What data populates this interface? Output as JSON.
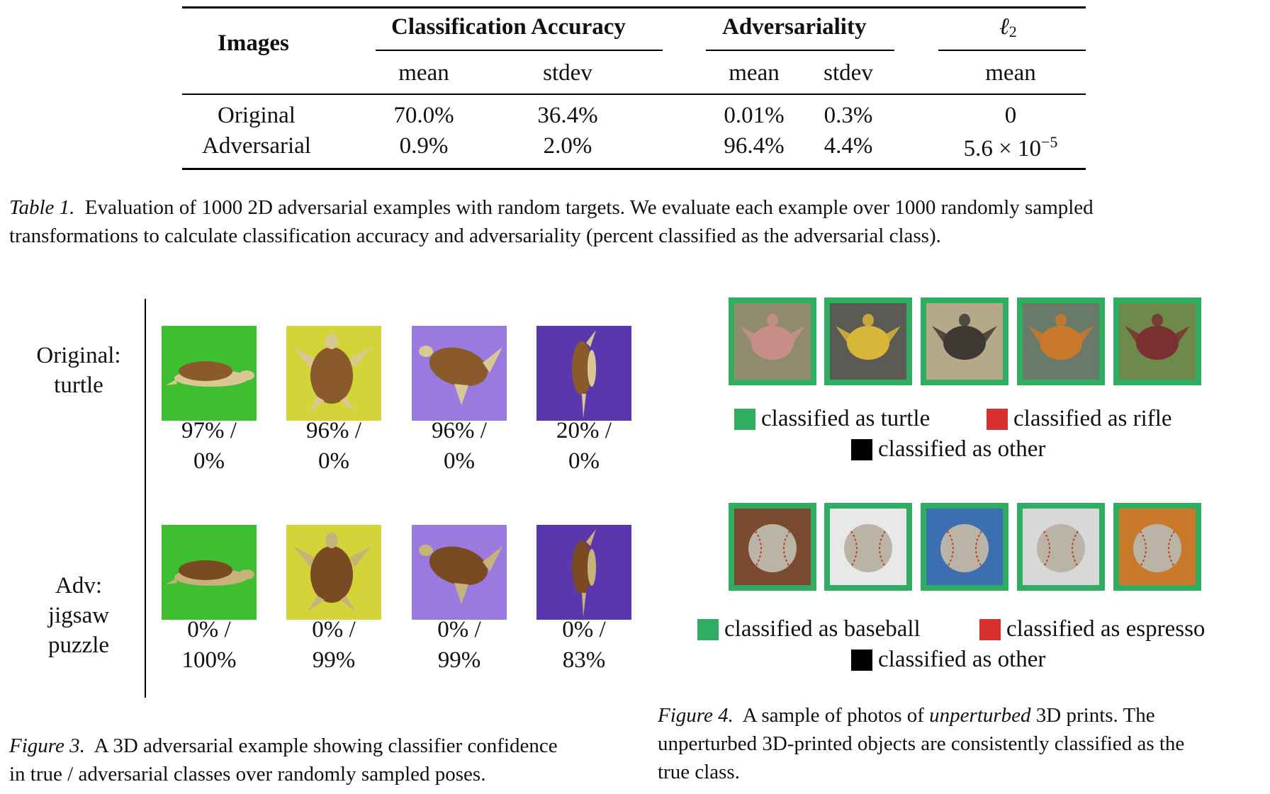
{
  "table1": {
    "headers": {
      "images": "Images",
      "classification_accuracy": "Classification Accuracy",
      "adversariality": "Adversariality",
      "l2_symbol": "ℓ",
      "l2_sub": "2",
      "mean": "mean",
      "stdev": "stdev"
    },
    "rows": [
      {
        "label": "Original",
        "acc_mean": "70.0%",
        "acc_stdev": "36.4%",
        "adv_mean": "0.01%",
        "adv_stdev": "0.3%",
        "l2_mean": "0"
      },
      {
        "label": "Adversarial",
        "acc_mean": "0.9%",
        "acc_stdev": "2.0%",
        "adv_mean": "96.4%",
        "adv_stdev": "4.4%",
        "l2_mean_base": "5.6 × 10",
        "l2_mean_exp": "−5"
      }
    ],
    "caption_label": "Table 1.",
    "caption_line1": "Evaluation of 1000 2D adversarial examples with random targets. We evaluate each example over 1000 randomly sampled",
    "caption_line2": "transformations to calculate classification accuracy and adversariality (percent classified as the adversarial class)."
  },
  "figure3": {
    "row_labels": [
      {
        "line1": "Original:",
        "line2": "turtle"
      },
      {
        "line1": "Adv:",
        "line2": "jigsaw",
        "line3": "puzzle"
      }
    ],
    "tile_colors": [
      "#3dbf31",
      "#d2d43a",
      "#9a7ade",
      "#5b37ad"
    ],
    "original": [
      {
        "line1": "97% /",
        "line2": "0%"
      },
      {
        "line1": "96% /",
        "line2": "0%"
      },
      {
        "line1": "96% /",
        "line2": "0%"
      },
      {
        "line1": "20% /",
        "line2": "0%"
      }
    ],
    "adversarial": [
      {
        "line1": "0% /",
        "line2": "100%"
      },
      {
        "line1": "0% /",
        "line2": "99%"
      },
      {
        "line1": "0% /",
        "line2": "99%"
      },
      {
        "line1": "0% /",
        "line2": "83%"
      }
    ],
    "caption_label": "Figure 3.",
    "caption_line1": "A 3D adversarial example showing classifier confidence",
    "caption_line2": "in true / adversarial classes over randomly sampled poses."
  },
  "figure4": {
    "border_color": "#2fae61",
    "turtle_legend": {
      "turtle": "classified as turtle",
      "rifle": "classified as rifle",
      "other": "classified as other"
    },
    "baseball_legend": {
      "baseball": "classified as baseball",
      "espresso": "classified as espresso",
      "other": "classified as other"
    },
    "colors": {
      "green": "#2fae61",
      "red": "#d8302f",
      "black": "#000000"
    },
    "caption_label": "Figure 4.",
    "caption_pre": "A sample of photos of",
    "caption_em": "unperturbed",
    "caption_post": "3D prints.  The",
    "caption_line2": "unperturbed 3D-printed objects are consistently classified as the",
    "caption_line3": "true class."
  }
}
